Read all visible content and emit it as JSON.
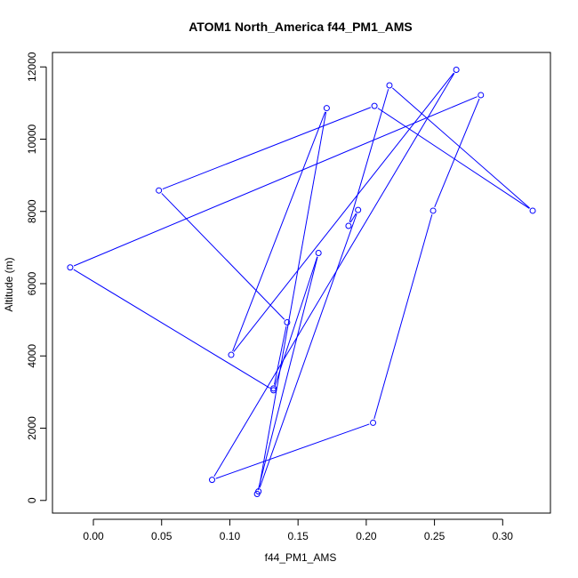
{
  "chart_data": {
    "type": "line",
    "title": "ATOM1 North_America f44_PM1_AMS",
    "xlabel": "f44_PM1_AMS",
    "ylabel": "Altitude (m)",
    "xlim": [
      -0.03,
      0.335
    ],
    "ylim": [
      -350,
      12400
    ],
    "x_ticks": [
      0.0,
      0.05,
      0.1,
      0.15,
      0.2,
      0.25,
      0.3
    ],
    "x_tick_labels": [
      "0.00",
      "0.05",
      "0.10",
      "0.15",
      "0.20",
      "0.25",
      "0.30"
    ],
    "y_ticks": [
      0,
      2000,
      4000,
      6000,
      8000,
      10000,
      12000
    ],
    "y_tick_labels": [
      "0",
      "2000",
      "4000",
      "6000",
      "8000",
      "10000",
      "12000"
    ],
    "grid": false,
    "series": [
      {
        "color": "#0000ff",
        "marker": "open-circle",
        "points": [
          {
            "x": 0.12,
            "y": 180
          },
          {
            "x": 0.165,
            "y": 6850
          },
          {
            "x": 0.132,
            "y": 3050
          },
          {
            "x": -0.017,
            "y": 6450
          },
          {
            "x": 0.284,
            "y": 11220
          },
          {
            "x": 0.249,
            "y": 8020
          },
          {
            "x": 0.205,
            "y": 2150
          },
          {
            "x": 0.087,
            "y": 570
          },
          {
            "x": 0.266,
            "y": 11920
          },
          {
            "x": 0.101,
            "y": 4030
          },
          {
            "x": 0.171,
            "y": 10860
          },
          {
            "x": 0.121,
            "y": 250
          },
          {
            "x": 0.194,
            "y": 8040
          },
          {
            "x": 0.187,
            "y": 7600
          },
          {
            "x": 0.217,
            "y": 11490
          },
          {
            "x": 0.322,
            "y": 8020
          },
          {
            "x": 0.206,
            "y": 10920
          },
          {
            "x": 0.048,
            "y": 8580
          },
          {
            "x": 0.142,
            "y": 4930
          },
          {
            "x": 0.132,
            "y": 3100
          }
        ]
      }
    ]
  }
}
